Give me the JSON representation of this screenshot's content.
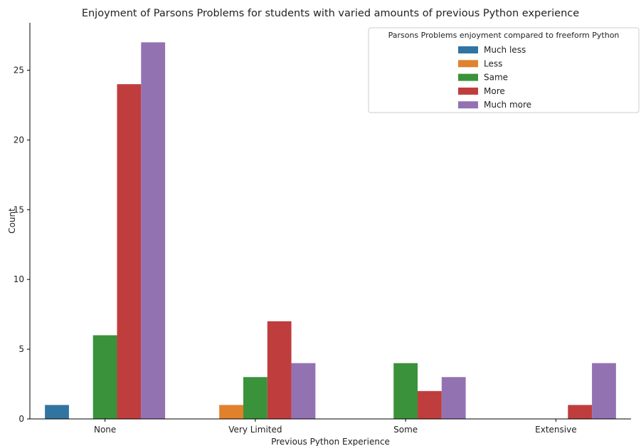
{
  "chart_data": {
    "type": "bar",
    "title": "Enjoyment of Parsons Problems for students with varied amounts of previous Python experience",
    "xlabel": "Previous Python Experience",
    "ylabel": "Count",
    "categories": [
      "None",
      "Very Limited",
      "Some",
      "Extensive"
    ],
    "ylim": [
      0,
      28.4
    ],
    "yticks": [
      0,
      5,
      10,
      15,
      20,
      25
    ],
    "grid": false,
    "legend": {
      "title": "Parsons Problems enjoyment compared to freeform Python",
      "placement": "top-right"
    },
    "series": [
      {
        "name": "Much less",
        "color": "#3274a1",
        "values": [
          1,
          0,
          0,
          0
        ]
      },
      {
        "name": "Less",
        "color": "#e1812c",
        "values": [
          0,
          1,
          0,
          0
        ]
      },
      {
        "name": "Same",
        "color": "#3a923a",
        "values": [
          6,
          3,
          4,
          0
        ]
      },
      {
        "name": "More",
        "color": "#c03d3e",
        "values": [
          24,
          7,
          2,
          1
        ]
      },
      {
        "name": "Much more",
        "color": "#9372b2",
        "values": [
          27,
          4,
          3,
          4
        ]
      }
    ]
  }
}
